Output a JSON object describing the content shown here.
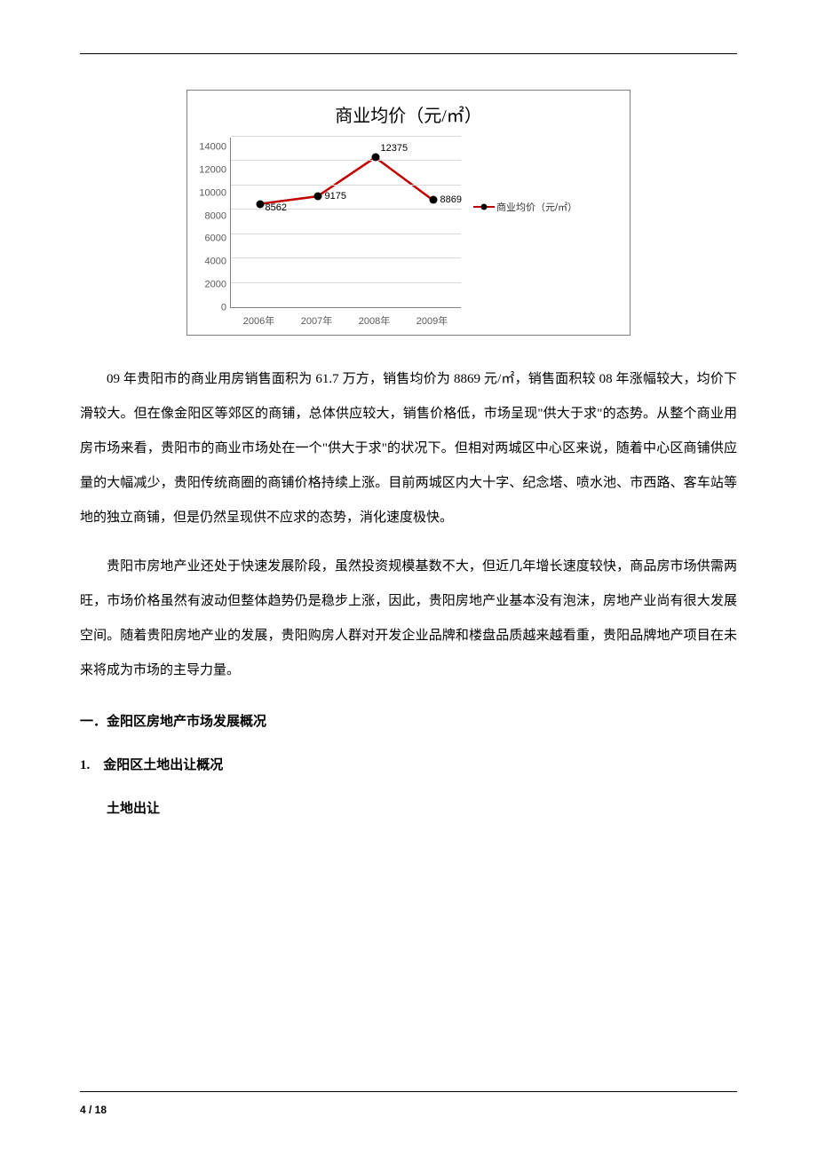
{
  "chart": {
    "type": "line",
    "title": "商业均价（元/㎡）",
    "legend_label": "商业均价（元/㎡）",
    "categories": [
      "2006年",
      "2007年",
      "2008年",
      "2009年"
    ],
    "values": [
      8562,
      9175,
      12375,
      8869
    ],
    "point_labels": [
      "8562",
      "9175",
      "12375",
      "8869"
    ],
    "ylim": [
      0,
      14000
    ],
    "ytick_step": 2000,
    "yticks": [
      "0",
      "2000",
      "4000",
      "6000",
      "8000",
      "10000",
      "12000",
      "14000"
    ],
    "line_color": "#c00000",
    "marker_color": "#000000",
    "marker_size": 9,
    "grid_color": "#d9d9d9",
    "axis_color": "#808080",
    "label_color": "#595959",
    "background_color": "#ffffff",
    "title_fontsize": 20,
    "legend_fontsize": 11,
    "label_fontsize": 11
  },
  "body": {
    "p1": "09 年贵阳市的商业用房销售面积为 61.7 万方，销售均价为 8869 元/㎡，销售面积较 08 年涨幅较大，均价下滑较大。但在像金阳区等郊区的商铺，总体供应较大，销售价格低，市场呈现\"供大于求\"的态势。从整个商业用房市场来看，贵阳市的商业市场处在一个\"供大于求\"的状况下。但相对两城区中心区来说，随着中心区商铺供应量的大幅减少，贵阳传统商圈的商铺价格持续上涨。目前两城区内大十字、纪念塔、喷水池、市西路、客车站等地的独立商铺，但是仍然呈现供不应求的态势，消化速度极快。",
    "p2": "贵阳市房地产业还处于快速发展阶段，虽然投资规模基数不大，但近几年增长速度较快，商品房市场供需两旺，市场价格虽然有波动但整体趋势仍是稳步上涨，因此，贵阳房地产业基本没有泡沫，房地产业尚有很大发展空间。随着贵阳房地产业的发展，贵阳购房人群对开发企业品牌和楼盘品质越来越看重，贵阳品牌地产项目在未来将成为市场的主导力量。"
  },
  "headings": {
    "h2": "一．金阳区房地产市场发展概况",
    "h3": "1.　金阳区土地出让概况",
    "h4": "土地出让"
  },
  "footer": {
    "page": "4 / 18"
  }
}
